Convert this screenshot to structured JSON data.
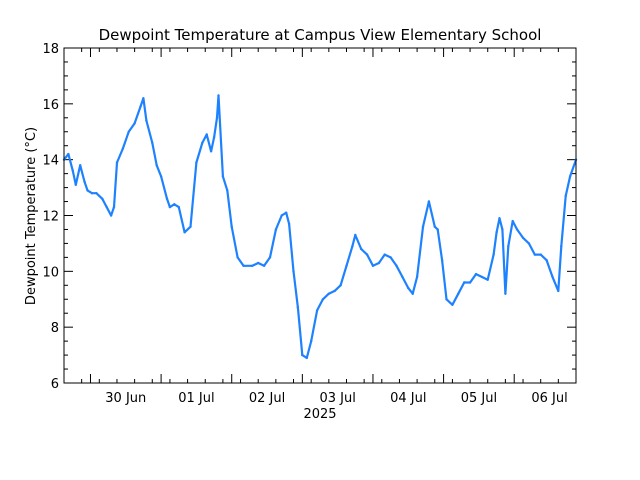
{
  "chart_data": {
    "type": "line",
    "title": "Dewpoint Temperature at Campus View Elementary School",
    "ylabel": "Dewpoint Temperature (°C)",
    "xlabel": "",
    "year_label": "2025",
    "ylim": [
      6,
      18
    ],
    "yticks": [
      "6",
      "8",
      "10",
      "12",
      "14",
      "16",
      "18"
    ],
    "xlim": [
      "2025-06-29T15:00",
      "2025-07-06T21:00"
    ],
    "xticks": [
      {
        "label": "30 Jun",
        "date": "2025-06-30T00:00"
      },
      {
        "label": "01 Jul",
        "date": "2025-07-01T00:00"
      },
      {
        "label": "02 Jul",
        "date": "2025-07-02T00:00"
      },
      {
        "label": "03 Jul",
        "date": "2025-07-03T00:00"
      },
      {
        "label": "04 Jul",
        "date": "2025-07-04T00:00"
      },
      {
        "label": "05 Jul",
        "date": "2025-07-05T00:00"
      },
      {
        "label": "06 Jul",
        "date": "2025-07-06T00:00"
      }
    ],
    "grid": false,
    "line_color": "#1e82ff",
    "series": [
      {
        "name": "",
        "x": [
          "2025-06-29T15:00",
          "2025-06-29T16:30",
          "2025-06-29T18:00",
          "2025-06-29T19:00",
          "2025-06-29T20:30",
          "2025-06-29T22:00",
          "2025-06-29T23:00",
          "2025-06-30T00:30",
          "2025-06-30T02:00",
          "2025-06-30T04:00",
          "2025-06-30T05:30",
          "2025-06-30T07:00",
          "2025-06-30T08:00",
          "2025-06-30T09:00",
          "2025-06-30T11:00",
          "2025-06-30T13:00",
          "2025-06-30T15:00",
          "2025-06-30T17:00",
          "2025-06-30T18:00",
          "2025-06-30T19:00",
          "2025-06-30T21:00",
          "2025-06-30T22:30",
          "2025-07-01T00:00",
          "2025-07-01T02:00",
          "2025-07-01T03:00",
          "2025-07-01T04:30",
          "2025-07-01T06:00",
          "2025-07-01T08:00",
          "2025-07-01T10:00",
          "2025-07-01T12:00",
          "2025-07-01T14:00",
          "2025-07-01T15:30",
          "2025-07-01T17:00",
          "2025-07-01T18:00",
          "2025-07-01T19:00",
          "2025-07-01T19:30",
          "2025-07-01T21:00",
          "2025-07-01T22:30",
          "2025-07-02T00:00",
          "2025-07-02T02:00",
          "2025-07-02T04:00",
          "2025-07-02T07:00",
          "2025-07-02T09:00",
          "2025-07-02T11:00",
          "2025-07-02T13:00",
          "2025-07-02T15:00",
          "2025-07-02T17:00",
          "2025-07-02T18:30",
          "2025-07-02T19:30",
          "2025-07-02T21:00",
          "2025-07-02T22:30",
          "2025-07-03T00:00",
          "2025-07-03T01:30",
          "2025-07-03T03:00",
          "2025-07-03T05:00",
          "2025-07-03T07:00",
          "2025-07-03T09:00",
          "2025-07-03T11:00",
          "2025-07-03T13:00",
          "2025-07-03T15:00",
          "2025-07-03T17:00",
          "2025-07-03T18:00",
          "2025-07-03T20:00",
          "2025-07-03T22:00",
          "2025-07-04T00:00",
          "2025-07-04T02:00",
          "2025-07-04T04:00",
          "2025-07-04T06:00",
          "2025-07-04T08:00",
          "2025-07-04T10:00",
          "2025-07-04T12:00",
          "2025-07-04T13:30",
          "2025-07-04T15:00",
          "2025-07-04T17:00",
          "2025-07-04T19:00",
          "2025-07-04T21:00",
          "2025-07-04T22:00",
          "2025-07-04T23:30",
          "2025-07-05T01:00",
          "2025-07-05T03:00",
          "2025-07-05T05:00",
          "2025-07-05T07:00",
          "2025-07-05T09:00",
          "2025-07-05T11:00",
          "2025-07-05T13:00",
          "2025-07-05T15:00",
          "2025-07-05T17:00",
          "2025-07-05T18:00",
          "2025-07-05T19:00",
          "2025-07-05T20:00",
          "2025-07-05T21:00",
          "2025-07-05T22:00",
          "2025-07-05T23:30",
          "2025-07-06T01:00",
          "2025-07-06T03:00",
          "2025-07-06T05:00",
          "2025-07-06T07:00",
          "2025-07-06T09:00",
          "2025-07-06T11:00",
          "2025-07-06T13:00",
          "2025-07-06T15:00",
          "2025-07-06T16:00",
          "2025-07-06T17:30",
          "2025-07-06T19:00",
          "2025-07-06T21:00"
        ],
        "values": [
          14.0,
          14.2,
          13.6,
          13.1,
          13.8,
          13.2,
          12.9,
          12.8,
          12.8,
          12.6,
          12.3,
          12.0,
          12.3,
          13.9,
          14.4,
          15.0,
          15.3,
          15.9,
          16.2,
          15.4,
          14.6,
          13.8,
          13.4,
          12.6,
          12.3,
          12.4,
          12.3,
          11.4,
          11.6,
          13.9,
          14.6,
          14.9,
          14.3,
          14.8,
          15.5,
          16.3,
          13.4,
          12.9,
          11.6,
          10.5,
          10.2,
          10.2,
          10.3,
          10.2,
          10.5,
          11.5,
          12.0,
          12.1,
          11.7,
          10.0,
          8.7,
          7.0,
          6.9,
          7.5,
          8.6,
          9.0,
          9.2,
          9.3,
          9.5,
          10.2,
          10.9,
          11.3,
          10.8,
          10.6,
          10.2,
          10.3,
          10.6,
          10.5,
          10.2,
          9.8,
          9.4,
          9.2,
          9.8,
          11.6,
          12.5,
          11.6,
          11.5,
          10.4,
          9.0,
          8.8,
          9.2,
          9.6,
          9.6,
          9.9,
          9.8,
          9.7,
          10.6,
          11.4,
          11.9,
          11.5,
          9.2,
          10.9,
          11.8,
          11.5,
          11.2,
          11.0,
          10.6,
          10.6,
          10.4,
          9.8,
          9.3,
          10.9,
          12.7,
          13.4,
          14.0
        ]
      }
    ]
  }
}
